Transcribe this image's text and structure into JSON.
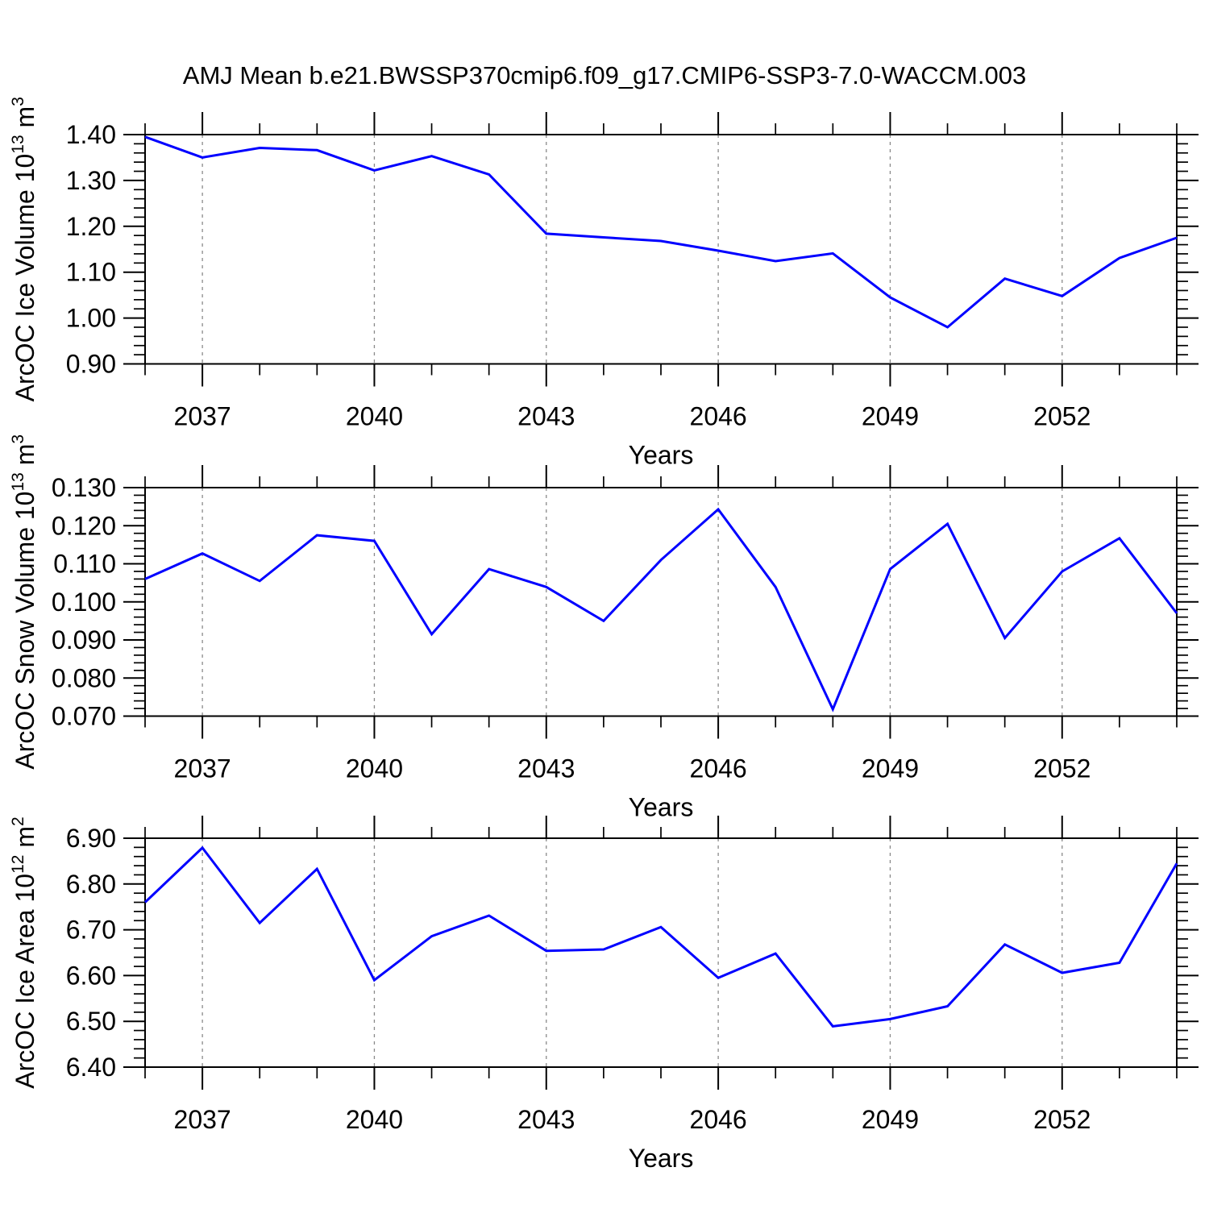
{
  "title": "AMJ Mean b.e21.BWSSP370cmip6.f09_g17.CMIP6-SSP3-7.0-WACCM.003",
  "colors": {
    "line": "#0000ff",
    "axis": "#000000",
    "gridline": "#8a8a8a",
    "background": "#ffffff"
  },
  "chart_data": [
    {
      "type": "line",
      "name": "ice-volume",
      "ylabel": "ArcOC Ice Volume 10^13 m^3",
      "ylabel_segments": [
        {
          "text": "ArcOC Ice Volume 10"
        },
        {
          "text": "13",
          "sup": true
        },
        {
          "text": " m"
        },
        {
          "text": "3",
          "sup": true
        }
      ],
      "xlabel": "Years",
      "xlim": [
        2036,
        2054
      ],
      "ylim": [
        0.9,
        1.4
      ],
      "yticks": [
        0.9,
        1.0,
        1.1,
        1.2,
        1.3,
        1.4
      ],
      "ytick_labels": [
        "0.90",
        "1.00",
        "1.10",
        "1.20",
        "1.30",
        "1.40"
      ],
      "ytick_minor_step": 0.02,
      "xticks": [
        2037,
        2040,
        2043,
        2046,
        2049,
        2052
      ],
      "xtick_labels": [
        "2037",
        "2040",
        "2043",
        "2046",
        "2049",
        "2052"
      ],
      "grid": "vertical-dashed",
      "legend": "none",
      "x": [
        2036,
        2037,
        2038,
        2039,
        2040,
        2041,
        2042,
        2043,
        2044,
        2045,
        2046,
        2047,
        2048,
        2049,
        2050,
        2051,
        2052,
        2053,
        2054
      ],
      "values": [
        1.395,
        1.35,
        1.371,
        1.366,
        1.322,
        1.353,
        1.313,
        1.184,
        1.176,
        1.168,
        1.147,
        1.124,
        1.141,
        1.045,
        0.98,
        1.086,
        1.048,
        1.131,
        1.175
      ]
    },
    {
      "type": "line",
      "name": "snow-volume",
      "ylabel": "ArcOC Snow Volume 10^13 m^3",
      "ylabel_segments": [
        {
          "text": "ArcOC Snow Volume 10"
        },
        {
          "text": "13",
          "sup": true
        },
        {
          "text": " m"
        },
        {
          "text": "3",
          "sup": true
        }
      ],
      "xlabel": "Years",
      "xlim": [
        2036,
        2054
      ],
      "ylim": [
        0.07,
        0.13
      ],
      "yticks": [
        0.07,
        0.08,
        0.09,
        0.1,
        0.11,
        0.12,
        0.13
      ],
      "ytick_labels": [
        "0.070",
        "0.080",
        "0.090",
        "0.100",
        "0.110",
        "0.120",
        "0.130"
      ],
      "ytick_minor_step": 0.002,
      "xticks": [
        2037,
        2040,
        2043,
        2046,
        2049,
        2052
      ],
      "xtick_labels": [
        "2037",
        "2040",
        "2043",
        "2046",
        "2049",
        "2052"
      ],
      "grid": "vertical-dashed",
      "legend": "none",
      "x": [
        2036,
        2037,
        2038,
        2039,
        2040,
        2041,
        2042,
        2043,
        2044,
        2045,
        2046,
        2047,
        2048,
        2049,
        2050,
        2051,
        2052,
        2053,
        2054
      ],
      "values": [
        0.106,
        0.1127,
        0.1055,
        0.1175,
        0.116,
        0.0915,
        0.1086,
        0.1039,
        0.095,
        0.111,
        0.1243,
        0.1039,
        0.0718,
        0.1086,
        0.1205,
        0.0905,
        0.108,
        0.1167,
        0.097
      ]
    },
    {
      "type": "line",
      "name": "ice-area",
      "ylabel": "ArcOC Ice Area 10^12 m^2",
      "ylabel_segments": [
        {
          "text": "ArcOC Ice Area 10"
        },
        {
          "text": "12",
          "sup": true
        },
        {
          "text": " m"
        },
        {
          "text": "2",
          "sup": true
        }
      ],
      "xlabel": "Years",
      "xlim": [
        2036,
        2054
      ],
      "ylim": [
        6.4,
        6.9
      ],
      "yticks": [
        6.4,
        6.5,
        6.6,
        6.7,
        6.8,
        6.9
      ],
      "ytick_labels": [
        "6.40",
        "6.50",
        "6.60",
        "6.70",
        "6.80",
        "6.90"
      ],
      "ytick_minor_step": 0.02,
      "xticks": [
        2037,
        2040,
        2043,
        2046,
        2049,
        2052
      ],
      "xtick_labels": [
        "2037",
        "2040",
        "2043",
        "2046",
        "2049",
        "2052"
      ],
      "grid": "vertical-dashed",
      "legend": "none",
      "x": [
        2036,
        2037,
        2038,
        2039,
        2040,
        2041,
        2042,
        2043,
        2044,
        2045,
        2046,
        2047,
        2048,
        2049,
        2050,
        2051,
        2052,
        2053,
        2054
      ],
      "values": [
        6.76,
        6.879,
        6.715,
        6.833,
        6.59,
        6.686,
        6.731,
        6.654,
        6.657,
        6.706,
        6.595,
        6.648,
        6.489,
        6.505,
        6.533,
        6.668,
        6.606,
        6.628,
        6.845
      ]
    }
  ]
}
